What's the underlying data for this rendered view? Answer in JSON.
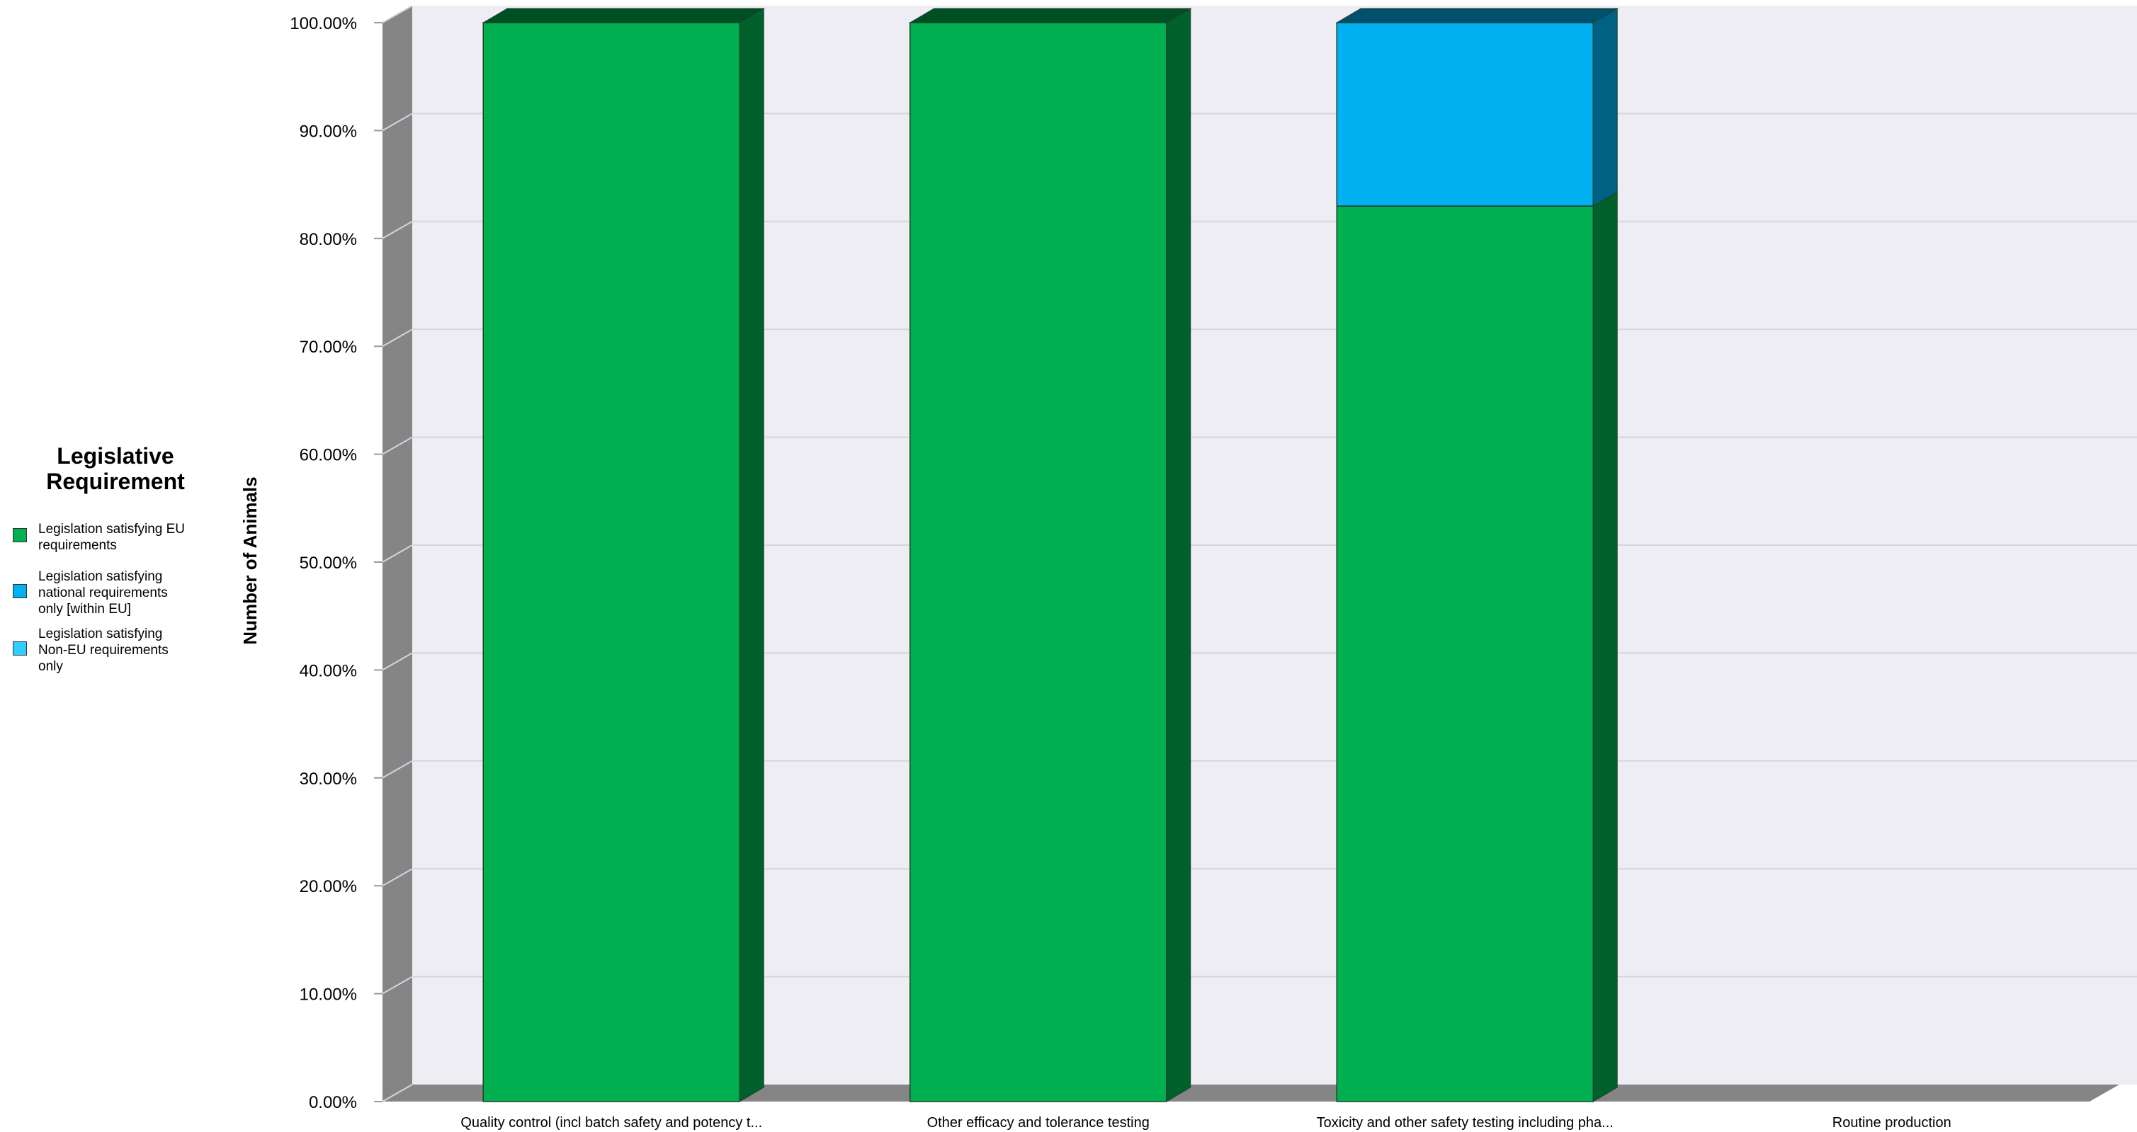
{
  "legend": {
    "title_line1": "Legislative",
    "title_line2": "Requirement",
    "items": [
      {
        "line1": "Legislation satisfying EU",
        "line2": "requirements",
        "line3": "",
        "color": "#00b050"
      },
      {
        "line1": "Legislation satisfying",
        "line2": "national requirements",
        "line3": "only [within EU]",
        "color": "#00b0f0"
      },
      {
        "line1": "Legislation satisfying",
        "line2": "Non-EU requirements",
        "line3": "only",
        "color": "#33ccff"
      }
    ]
  },
  "chart_data": {
    "type": "bar",
    "stacked": true,
    "three_d": true,
    "ylabel": "Number of Animals",
    "xlabel": "",
    "ylim": [
      0,
      100
    ],
    "y_ticks": [
      "0.00%",
      "10.00%",
      "20.00%",
      "30.00%",
      "40.00%",
      "50.00%",
      "60.00%",
      "70.00%",
      "80.00%",
      "90.00%",
      "100.00%"
    ],
    "categories": [
      "Quality control (incl batch safety and potency t...",
      "Other efficacy and tolerance testing",
      "Toxicity and other safety testing including  pha...",
      "Routine production"
    ],
    "series": [
      {
        "name": "Legislation satisfying EU requirements",
        "color": "#00b050",
        "values": [
          100,
          100,
          83,
          0
        ]
      },
      {
        "name": "Legislation satisfying national requirements only [within EU]",
        "color": "#00b0f0",
        "values": [
          0,
          0,
          17,
          0
        ]
      },
      {
        "name": "Legislation satisfying Non-EU requirements only",
        "color": "#33ccff",
        "values": [
          0,
          0,
          0,
          0
        ]
      }
    ],
    "grid": true,
    "legend_position": "left"
  }
}
